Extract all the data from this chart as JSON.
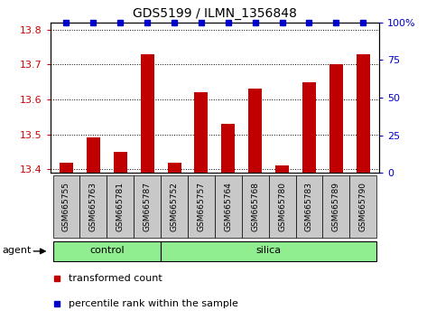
{
  "title": "GDS5199 / ILMN_1356848",
  "samples": [
    "GSM665755",
    "GSM665763",
    "GSM665781",
    "GSM665787",
    "GSM665752",
    "GSM665757",
    "GSM665764",
    "GSM665768",
    "GSM665780",
    "GSM665783",
    "GSM665789",
    "GSM665790"
  ],
  "transformed_counts": [
    13.42,
    13.49,
    13.45,
    13.73,
    13.42,
    13.62,
    13.53,
    13.63,
    13.41,
    13.65,
    13.7,
    13.73
  ],
  "percentile_ranks": [
    100,
    100,
    100,
    100,
    100,
    100,
    100,
    100,
    100,
    100,
    100,
    100
  ],
  "groups": [
    {
      "label": "control",
      "start": 0,
      "end": 3
    },
    {
      "label": "silica",
      "start": 4,
      "end": 11
    }
  ],
  "ylim": [
    13.39,
    13.82
  ],
  "yticks": [
    13.4,
    13.5,
    13.6,
    13.7,
    13.8
  ],
  "right_yticks": [
    0,
    25,
    50,
    75,
    100
  ],
  "right_yticklabels": [
    "0",
    "25",
    "50",
    "75",
    "100%"
  ],
  "bar_color": "#c00000",
  "percentile_color": "#0000cc",
  "group_color": "#90ee90",
  "tick_label_bg": "#c8c8c8",
  "grid_color": "#000000",
  "left_tick_color": "#cc0000",
  "right_tick_color": "#0000cc",
  "legend_red_label": "transformed count",
  "legend_blue_label": "percentile rank within the sample",
  "agent_label": "agent",
  "bar_width": 0.5,
  "figsize": [
    4.83,
    3.54
  ],
  "dpi": 100
}
